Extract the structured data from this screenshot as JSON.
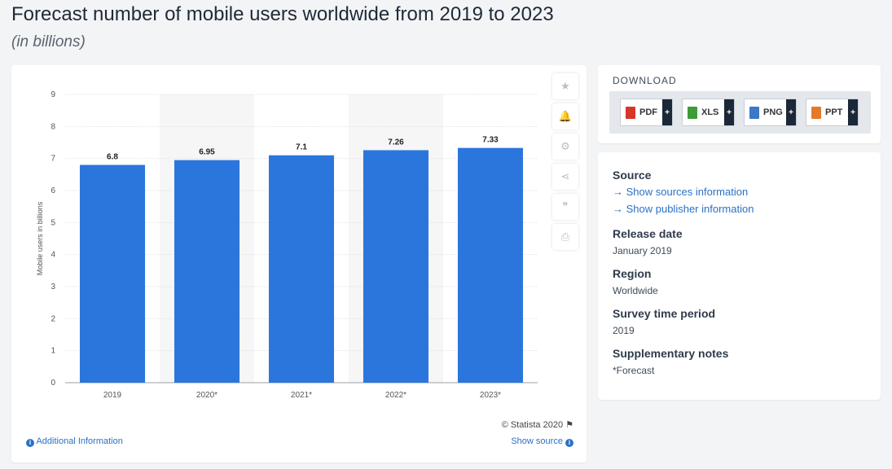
{
  "header": {
    "title": "Forecast number of mobile users worldwide from 2019 to 2023",
    "subtitle": "(in billions)"
  },
  "chart_data": {
    "type": "bar",
    "categories": [
      "2019",
      "2020*",
      "2021*",
      "2022*",
      "2023*"
    ],
    "values": [
      6.8,
      6.95,
      7.1,
      7.26,
      7.33
    ],
    "value_labels": [
      "6.8",
      "6.95",
      "7.1",
      "7.26",
      "7.33"
    ],
    "xlabel": "",
    "ylabel": "Mobile users in billions",
    "ylim": [
      0,
      9
    ],
    "yticks": [
      0,
      1,
      2,
      3,
      4,
      5,
      6,
      7,
      8,
      9
    ],
    "grid": true,
    "bar_color": "#2b76dc",
    "shaded_categories": [
      "2020*",
      "2022*"
    ]
  },
  "chart_footer": {
    "copyright": "© Statista 2020",
    "additional_info": "Additional Information",
    "show_source": "Show source"
  },
  "tools": [
    {
      "icon": "star-icon",
      "glyph": "★"
    },
    {
      "icon": "bell-icon",
      "glyph": "🔔"
    },
    {
      "icon": "gear-icon",
      "glyph": "⚙"
    },
    {
      "icon": "share-icon",
      "glyph": "⋖"
    },
    {
      "icon": "quote-icon",
      "glyph": "❞"
    },
    {
      "icon": "print-icon",
      "glyph": "⎙"
    }
  ],
  "download": {
    "title": "DOWNLOAD",
    "buttons": [
      {
        "label": "PDF",
        "icon": "pdf-file-icon",
        "color": "#d9352b"
      },
      {
        "label": "XLS",
        "icon": "xls-file-icon",
        "color": "#3d9b3a"
      },
      {
        "label": "PNG",
        "icon": "png-file-icon",
        "color": "#3a78c8"
      },
      {
        "label": "PPT",
        "icon": "ppt-file-icon",
        "color": "#e5792b"
      }
    ],
    "plus": "+"
  },
  "meta": {
    "source_heading": "Source",
    "show_sources": "→ Show sources information",
    "show_publisher": "→ Show publisher information",
    "release_heading": "Release date",
    "release_value": "January 2019",
    "region_heading": "Region",
    "region_value": "Worldwide",
    "survey_heading": "Survey time period",
    "survey_value": "2019",
    "notes_heading": "Supplementary notes",
    "notes_value": "*Forecast"
  }
}
